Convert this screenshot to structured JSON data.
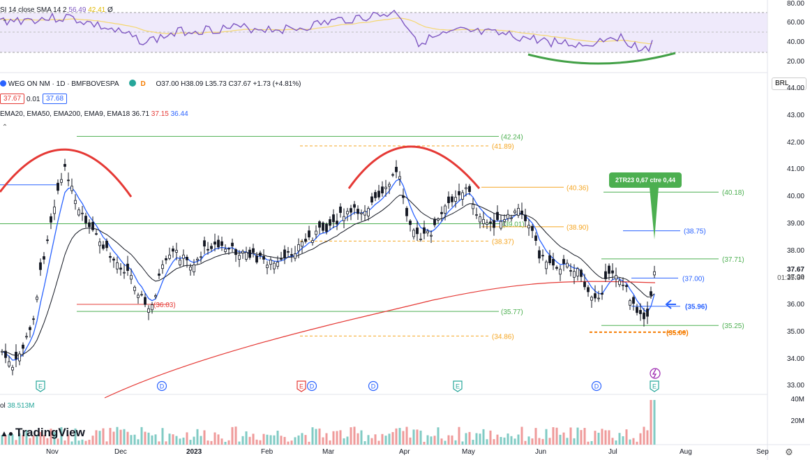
{
  "rsi": {
    "legend": "SI 14 close SMA 14 2",
    "v1": "56.49",
    "v2": "42.41",
    "v3": "Ø",
    "ticks": [
      "80.00",
      "60.00",
      "40.00",
      "20.00"
    ]
  },
  "header": {
    "symbol": "WEG ON NM · 1D · BMFBOVESPA",
    "ohlc": "O37.00 H38.09 L35.73 C37.67 +1.73 (+4.81%)",
    "bid": "37.67",
    "spread": "0.01",
    "ask": "37.68",
    "ema_legend": "EMA20, EMA50, EMA200, EMA9, EMA18",
    "ema_v1": "36.71",
    "ema_v2": "37.15",
    "ema_v3": "36.44",
    "currency": "BRL",
    "d_badge": "D"
  },
  "price_axis": {
    "ticks": [
      "44.00",
      "43.00",
      "42.00",
      "41.00",
      "40.00",
      "39.00",
      "38.00",
      "37.00",
      "36.00",
      "35.00",
      "34.00",
      "33.00"
    ],
    "last_price": "37.67",
    "countdown": "01:25:34"
  },
  "callout": {
    "text": "2TR23 0,67 ctre 0,44"
  },
  "chart_data": {
    "type": "candlestick",
    "ylim": [
      32.7,
      44.6
    ],
    "levels": [
      {
        "label": "(42.24)",
        "value": 42.24,
        "color": "#4caf50",
        "style": "solid"
      },
      {
        "label": "(41.89)",
        "value": 41.89,
        "color": "#f5a623",
        "style": "dashed"
      },
      {
        "label": "(40.36)",
        "value": 40.36,
        "color": "#f5a623",
        "style": "solid"
      },
      {
        "label": "(40.18)",
        "value": 40.18,
        "color": "#4caf50",
        "style": "solid"
      },
      {
        "label": "(39.01)",
        "value": 39.01,
        "color": "#4caf50",
        "style": "solid"
      },
      {
        "label": "(38.90)",
        "value": 38.9,
        "color": "#f5a623",
        "style": "solid"
      },
      {
        "label": "(38.75)",
        "value": 38.75,
        "color": "#2962ff",
        "style": "solid"
      },
      {
        "label": "(38.37)",
        "value": 38.37,
        "color": "#f5a623",
        "style": "dashed"
      },
      {
        "label": "(37.71)",
        "value": 37.71,
        "color": "#4caf50",
        "style": "solid"
      },
      {
        "label": "(37.00)",
        "value": 37.0,
        "color": "#2962ff",
        "style": "solid"
      },
      {
        "label": "(36.03)",
        "value": 36.03,
        "color": "#e53935",
        "style": "solid"
      },
      {
        "label": "(35.96)",
        "value": 35.96,
        "color": "#2962ff",
        "style": "solid"
      },
      {
        "label": "(35.77)",
        "value": 35.77,
        "color": "#4caf50",
        "style": "solid"
      },
      {
        "label": "(35.25)",
        "value": 35.25,
        "color": "#4caf50",
        "style": "solid"
      },
      {
        "label": "(35.00)",
        "value": 35.0,
        "color": "#f57c00",
        "style": "dashed"
      },
      {
        "label": "(34.86)",
        "value": 34.86,
        "color": "#f5a623",
        "style": "dashed"
      }
    ],
    "volume_label": "ol",
    "volume_value": "38.513M",
    "volume_ticks": [
      "40M",
      "20M"
    ],
    "x_labels": [
      "Nov",
      "Dec",
      "2023",
      "Feb",
      "Mar",
      "Apr",
      "May",
      "Jun",
      "Jul",
      "Aug",
      "Sep"
    ],
    "event_markers": [
      {
        "type": "E",
        "date": "Nov"
      },
      {
        "type": "D",
        "date": "Dec"
      },
      {
        "type": "E",
        "date": "Feb"
      },
      {
        "type": "D",
        "date": "Feb"
      },
      {
        "type": "D",
        "date": "Mar"
      },
      {
        "type": "E",
        "date": "Apr"
      },
      {
        "type": "D",
        "date": "Jun"
      },
      {
        "type": "E",
        "date": "Jul"
      }
    ],
    "colors": {
      "up": "#ffffff",
      "down": "#131722",
      "ema_fast": "#2962ff",
      "ema_slow": "#131722",
      "ema200": "#e53935",
      "rsi": "#7e57c2",
      "rsi_sma": "#f5d76e"
    }
  },
  "branding": {
    "name": "TradingView"
  }
}
